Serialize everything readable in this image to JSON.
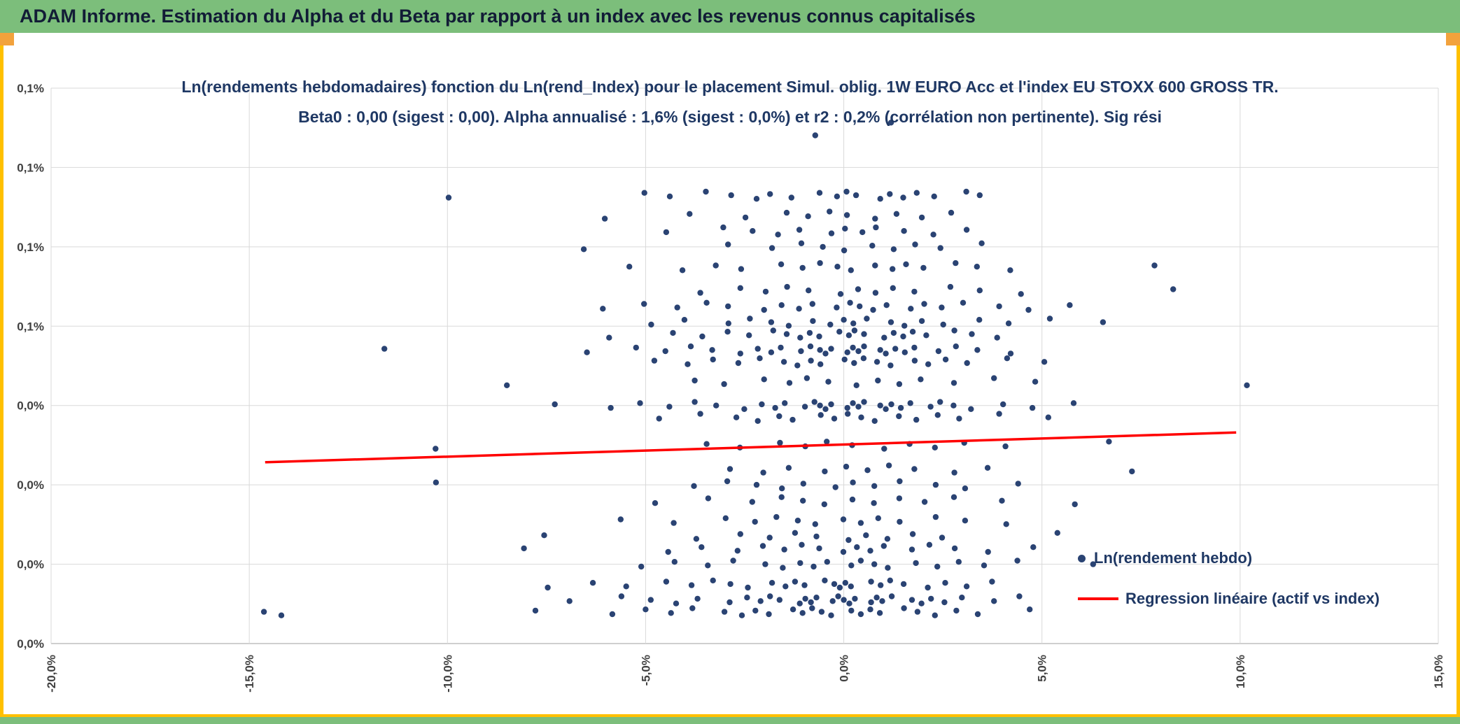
{
  "header": {
    "title": "ADAM Informe. Estimation du Alpha et du Beta par rapport à un index avec les revenus connus capitalisés"
  },
  "colors": {
    "header_green": "#7CBE7B",
    "header_text": "#121C36",
    "accent_gold": "#FFC000",
    "corner_orange": "#F2A23C",
    "dot_navy": "#2A4373",
    "regression_red": "#FF0000",
    "title_navy": "#1F3864",
    "grid_gray": "#D9D9D9",
    "axis_line_gray": "#BFBFBF",
    "tick_text": "#404040"
  },
  "chart_data": {
    "type": "scatter",
    "title_lines": [
      "Ln(rendements hebdomadaires) fonction du Ln(rend_Index) pour le placement Simul. oblig. 1W EURO Acc et l'index EU STOXX 600 GROSS TR.",
      "Beta0 : 0,00 (sigest : 0,00). Alpha annualisé : 1,6% (sigest : 0,0%) et r2 : 0,2% (corrélation non pertinente). Sig rési"
    ],
    "stats": {
      "beta0": "0,00",
      "beta0_sigest": "0,00",
      "alpha_annualise": "1,6%",
      "alpha_sigest": "0,0%",
      "r2": "0,2%",
      "note": "corrélation non pertinente"
    },
    "grid": true,
    "x_axis": {
      "unit": "%",
      "min": -20,
      "max": 15,
      "labels": [
        "-20,0%",
        "-15,0%",
        "-10,0%",
        "-5,0%",
        "0,0%",
        "5,0%",
        "10,0%",
        "15,0%"
      ]
    },
    "y_axis": {
      "unit": "%",
      "top_value": 0.125,
      "bottom_value": -0.015,
      "labels": [
        "0,1%",
        "0,1%",
        "0,1%",
        "0,1%",
        "0,0%",
        "0,0%",
        "0,0%",
        "0,0%"
      ]
    },
    "legend": {
      "position": "inside-right",
      "entries": [
        "Ln(rendement hebdo)",
        "Regression linéaire (actif vs index)"
      ]
    },
    "series": [
      {
        "name": "Ln(rendement hebdo)",
        "type": "scatter",
        "color_key": "dot_navy",
        "bands": [
          {
            "y": 0.114,
            "x": [
              -0.6
            ]
          },
          {
            "y": 0.116,
            "x": [
              1.1
            ]
          },
          {
            "y": 0.098,
            "x": [
              -10,
              -5,
              -4.3,
              -3.6,
              -2.9,
              -2.2,
              -1.8,
              -1.2,
              -0.7,
              -0.2,
              0.1,
              0.4,
              0.8,
              1.1,
              1.5,
              1.9,
              2.4,
              3,
              3.4
            ]
          },
          {
            "y": 0.093,
            "x": [
              -6,
              -3.8,
              -2.6,
              -1.5,
              -0.9,
              -0.3,
              0.2,
              0.7,
              1.3,
              2,
              2.8
            ]
          },
          {
            "y": 0.089,
            "x": [
              -4.6,
              -3.1,
              -2.3,
              -1.6,
              -1,
              -0.4,
              0,
              0.5,
              0.9,
              1.4,
              2.2,
              3.1
            ]
          },
          {
            "y": 0.085,
            "x": [
              -6.5,
              -2.8,
              -1.9,
              -1.1,
              -0.5,
              0.1,
              0.6,
              1.2,
              1.8,
              2.5,
              3.6
            ]
          },
          {
            "y": 0.08,
            "x": [
              -5.5,
              -4.1,
              -3.2,
              -2.5,
              -1.7,
              -1.1,
              -0.6,
              -0.1,
              0.3,
              0.7,
              1.2,
              1.6,
              2.1,
              2.7,
              3.3,
              4.2,
              7.9
            ]
          },
          {
            "y": 0.074,
            "x": [
              -3.5,
              -2.7,
              -2,
              -1.4,
              -0.8,
              -0.2,
              0.3,
              0.8,
              1.3,
              1.9,
              2.6,
              3.4,
              4.5,
              8.4
            ]
          },
          {
            "y": 0.07,
            "x": [
              -6.2,
              -5.1,
              -4.2,
              -3.4,
              -2.8,
              -2.1,
              -1.6,
              -1.1,
              -0.7,
              -0.3,
              0.1,
              0.4,
              0.8,
              1.2,
              1.6,
              2,
              2.5,
              3.1,
              3.8,
              4.6,
              5.7
            ]
          },
          {
            "y": 0.066,
            "x": [
              -4.8,
              -3.9,
              -3,
              -2.4,
              -1.8,
              -1.3,
              -0.9,
              -0.4,
              0,
              0.3,
              0.7,
              1.1,
              1.5,
              2,
              2.6,
              3.3,
              4.1,
              5.2,
              6.6
            ]
          },
          {
            "y": 0.063,
            "x": [
              -5.8,
              -4.4,
              -3.6,
              -2.9,
              -2.3,
              -1.9,
              -1.5,
              -1.1,
              -0.8,
              -0.5,
              -0.2,
              0.1,
              0.3,
              0.6,
              0.9,
              1.2,
              1.5,
              1.8,
              2.2,
              2.7,
              3.2,
              3.9
            ]
          },
          {
            "y": 0.059,
            "x": [
              -11.5,
              -6.6,
              -5.3,
              -4.5,
              -3.8,
              -3.2,
              -2.7,
              -2.2,
              -1.8,
              -1.5,
              -1.2,
              -0.9,
              -0.6,
              -0.4,
              -0.2,
              0,
              0.2,
              0.4,
              0.6,
              0.8,
              1,
              1.3,
              1.6,
              1.9,
              2.3,
              2.8,
              3.4,
              4.3
            ]
          },
          {
            "y": 0.056,
            "x": [
              -4.9,
              -4,
              -3.3,
              -2.6,
              -2,
              -1.6,
              -1.2,
              -0.8,
              -0.5,
              -0.1,
              0.2,
              0.5,
              0.9,
              1.3,
              1.7,
              2.1,
              2.6,
              3.2,
              4,
              5
            ]
          },
          {
            "y": 0.051,
            "x": [
              -8.5,
              -3.7,
              -2.9,
              -2.1,
              -1.4,
              -0.9,
              -0.3,
              0.2,
              0.8,
              1.4,
              2,
              2.9,
              3.7,
              4.8,
              10.2
            ]
          },
          {
            "y": 0.045,
            "x": [
              -7.2,
              -6,
              -5.2,
              -4.4,
              -3.7,
              -3.1,
              -2.6,
              -2.1,
              -1.7,
              -1.4,
              -1.1,
              -0.8,
              -0.6,
              -0.4,
              -0.2,
              0,
              0.2,
              0.4,
              0.6,
              0.8,
              1,
              1.2,
              1.5,
              1.8,
              2.1,
              2.4,
              2.8,
              3.3,
              3.9,
              4.7,
              5.8
            ]
          },
          {
            "y": 0.042,
            "x": [
              -4.6,
              -3.5,
              -2.8,
              -2.2,
              -1.6,
              -1.2,
              -0.7,
              -0.3,
              0.1,
              0.5,
              0.9,
              1.3,
              1.8,
              2.4,
              3,
              3.8,
              5.1
            ]
          },
          {
            "y": 0.035,
            "x": [
              -10.3,
              -3.4,
              -2.5,
              -1.7,
              -1,
              -0.4,
              0.3,
              0.9,
              1.6,
              2.3,
              3.1,
              4.2,
              6.6
            ]
          },
          {
            "y": 0.029,
            "x": [
              -2.9,
              -2,
              -1.3,
              -0.6,
              0,
              0.6,
              1.2,
              1.9,
              2.7,
              3.6,
              7.3
            ]
          },
          {
            "y": 0.025,
            "x": [
              -10.2,
              -3.9,
              -3,
              -2.2,
              -1.5,
              -0.9,
              -0.3,
              0.2,
              0.8,
              1.5,
              2.2,
              3,
              4.4
            ]
          },
          {
            "y": 0.021,
            "x": [
              -4.7,
              -3.3,
              -2.4,
              -1.6,
              -1,
              -0.4,
              0.1,
              0.7,
              1.4,
              2.1,
              2.9,
              3.9,
              5.8
            ]
          },
          {
            "y": 0.016,
            "x": [
              -5.6,
              -4.2,
              -3.1,
              -2.3,
              -1.7,
              -1.1,
              -0.6,
              -0.1,
              0.4,
              0.9,
              1.5,
              2.2,
              3,
              4.1
            ]
          },
          {
            "y": 0.012,
            "x": [
              -7.5,
              -3.6,
              -2.7,
              -1.9,
              -1.2,
              -0.6,
              0,
              0.5,
              1.1,
              1.8,
              2.6,
              5.3
            ]
          },
          {
            "y": 0.009,
            "x": [
              -8.1,
              -4.4,
              -3.5,
              -2.8,
              -2.1,
              -1.5,
              -1,
              -0.5,
              -0.1,
              0.3,
              0.7,
              1.1,
              1.6,
              2.1,
              2.8,
              3.7,
              4.9
            ]
          },
          {
            "y": 0.005,
            "x": [
              -5.2,
              -4.3,
              -3.4,
              -2.7,
              -2.1,
              -1.6,
              -1.1,
              -0.7,
              -0.3,
              0.1,
              0.4,
              0.8,
              1.2,
              1.7,
              2.3,
              2.9,
              3.6,
              4.5,
              6.2
            ]
          },
          {
            "y": 0,
            "x": [
              -7.5,
              -6.3,
              -5.4,
              -4.6,
              -3.9,
              -3.3,
              -2.8,
              -2.3,
              -1.9,
              -1.5,
              -1.2,
              -0.9,
              -0.6,
              -0.3,
              -0.1,
              0.1,
              0.3,
              0.6,
              0.9,
              1.2,
              1.6,
              2,
              2.5,
              3.1,
              3.8
            ]
          },
          {
            "y": -0.004,
            "x": [
              -6.8,
              -5.7,
              -4.9,
              -4.2,
              -3.6,
              -3,
              -2.5,
              -2.1,
              -1.8,
              -1.5,
              -1.2,
              -1,
              -0.8,
              -0.6,
              -0.4,
              -0.2,
              0,
              0.2,
              0.4,
              0.6,
              0.8,
              1,
              1.3,
              1.6,
              1.9,
              2.2,
              2.6,
              3.1,
              3.7,
              4.4
            ]
          },
          {
            "y": -0.007,
            "x": [
              -14.6,
              -14.1,
              -7.9,
              -5.9,
              -5,
              -4.3,
              -3.7,
              -3.1,
              -2.6,
              -2.2,
              -1.8,
              -1.4,
              -1.1,
              -0.8,
              -0.5,
              -0.2,
              0.1,
              0.4,
              0.7,
              1,
              1.4,
              1.8,
              2.3,
              2.9,
              3.5,
              4.6
            ]
          }
        ]
      },
      {
        "name": "Regression linéaire (actif vs index)",
        "type": "line",
        "color_key": "regression_red",
        "points": [
          [
            -14.6,
            0.0307
          ],
          [
            9.9,
            0.0382
          ]
        ]
      }
    ]
  }
}
